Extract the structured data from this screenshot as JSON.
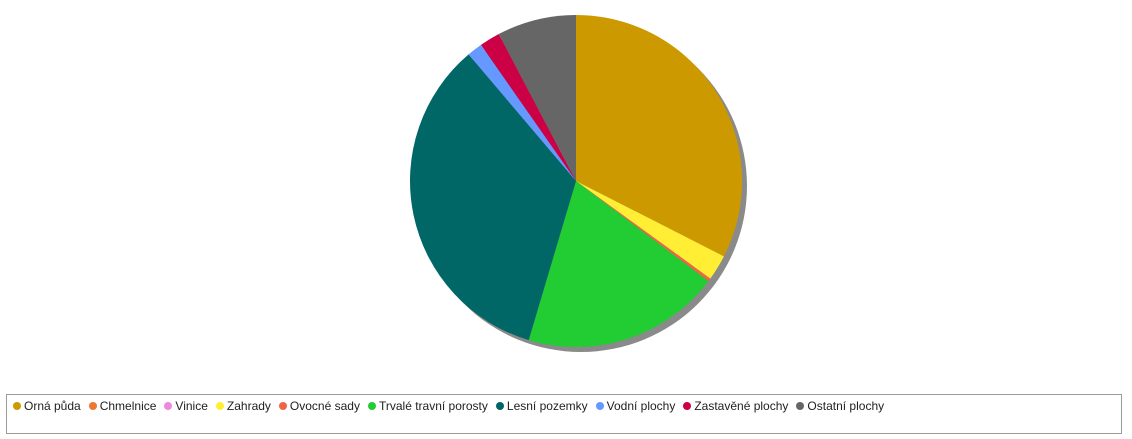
{
  "chart_data": {
    "type": "pie",
    "categories": [
      "Orná půda",
      "Chmelnice",
      "Vinice",
      "Zahrady",
      "Ovocné sady",
      "Trvalé travní porosty",
      "Lesní pozemky",
      "Vodní plochy",
      "Zastavěné plochy",
      "Ostatní plochy"
    ],
    "values": [
      32.5,
      0.0,
      0.0,
      2.5,
      0.3,
      19.3,
      34.2,
      1.5,
      2.0,
      7.7
    ],
    "unit": "%",
    "colors": [
      "#cc9900",
      "#ee7733",
      "#ee88dd",
      "#ffee33",
      "#ee6644",
      "#22cc33",
      "#006666",
      "#6699ff",
      "#cc0044",
      "#666666"
    ],
    "start_angle_deg": 0,
    "direction": "clockwise",
    "shadow": true,
    "legend_position": "bottom"
  }
}
